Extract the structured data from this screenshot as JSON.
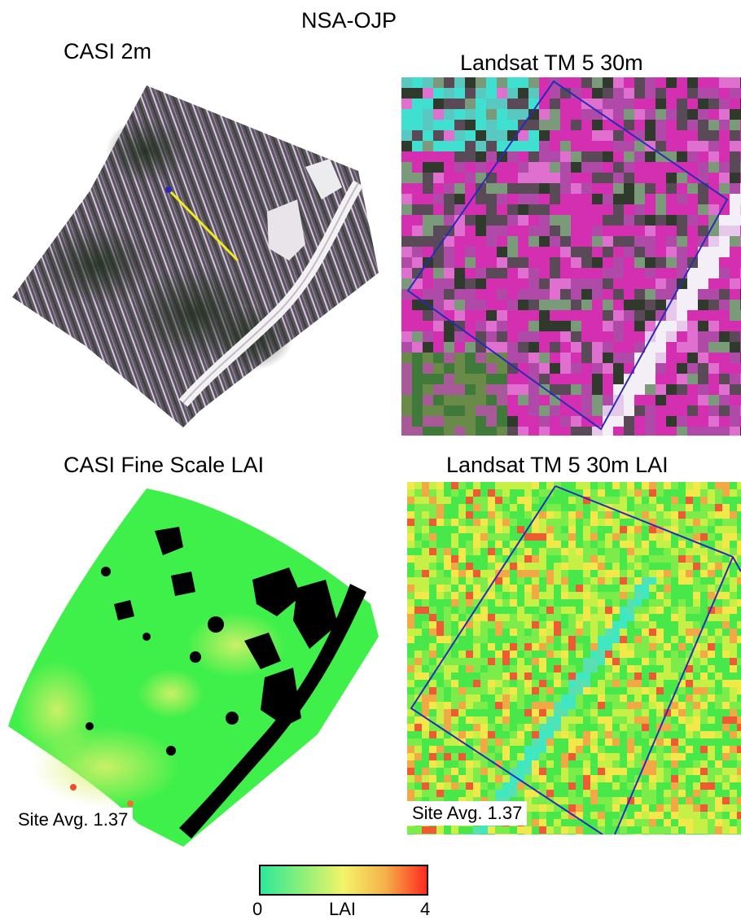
{
  "figure": {
    "title": "NSA-OJP",
    "panels": {
      "casi_rgb": {
        "label": "CASI 2m"
      },
      "landsat_rgb": {
        "label": "Landsat TM 5 30m"
      },
      "casi_lai": {
        "label": "CASI Fine Scale LAI",
        "site_avg": "Site Avg. 1.37"
      },
      "landsat_lai": {
        "label": "Landsat TM 5 30m LAI",
        "site_avg": "Site Avg. 1.37"
      }
    },
    "colorbar": {
      "label": "LAI",
      "min_label": "0",
      "max_label": "4",
      "colors": [
        "#2de89a",
        "#8cf07a",
        "#f4f46a",
        "#f4b24a",
        "#ff2a1e"
      ]
    },
    "colors": {
      "site_outline": "#2a2ab8",
      "transect": "#f2ea1c",
      "road": "#f2f2f2",
      "masked": "#000000"
    }
  }
}
